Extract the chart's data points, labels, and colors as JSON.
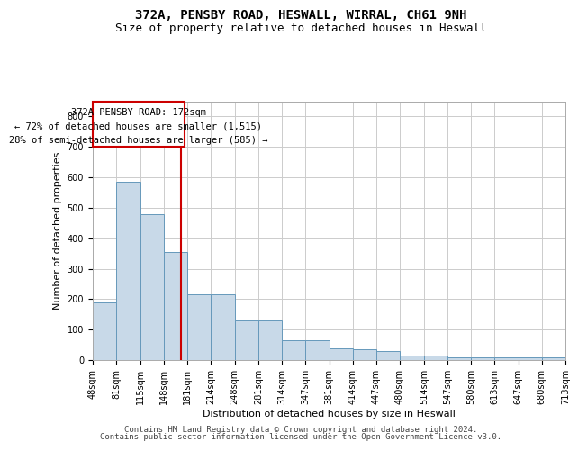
{
  "title": "372A, PENSBY ROAD, HESWALL, WIRRAL, CH61 9NH",
  "subtitle": "Size of property relative to detached houses in Heswall",
  "xlabel": "Distribution of detached houses by size in Heswall",
  "ylabel": "Number of detached properties",
  "footer1": "Contains HM Land Registry data © Crown copyright and database right 2024.",
  "footer2": "Contains public sector information licensed under the Open Government Licence v3.0.",
  "annotation_line1": "372A PENSBY ROAD: 172sqm",
  "annotation_line2": "← 72% of detached houses are smaller (1,515)",
  "annotation_line3": "28% of semi-detached houses are larger (585) →",
  "property_size": 172,
  "bin_edges": [
    48,
    81,
    115,
    148,
    181,
    214,
    248,
    281,
    314,
    347,
    381,
    414,
    447,
    480,
    514,
    547,
    580,
    613,
    647,
    680,
    713
  ],
  "bar_heights": [
    190,
    585,
    480,
    355,
    215,
    215,
    130,
    130,
    65,
    65,
    38,
    35,
    30,
    15,
    15,
    10,
    10,
    10,
    8,
    8
  ],
  "bar_color": "#c8d9e8",
  "bar_edge_color": "#6699bb",
  "grid_color": "#cccccc",
  "vline_color": "#cc0000",
  "annotation_box_color": "#cc0000",
  "background_color": "#ffffff",
  "ylim": [
    0,
    850
  ],
  "yticks": [
    0,
    100,
    200,
    300,
    400,
    500,
    600,
    700,
    800
  ],
  "title_fontsize": 10,
  "subtitle_fontsize": 9,
  "tick_fontsize": 7,
  "label_fontsize": 8,
  "footer_fontsize": 6.5,
  "annotation_fontsize": 7.5
}
